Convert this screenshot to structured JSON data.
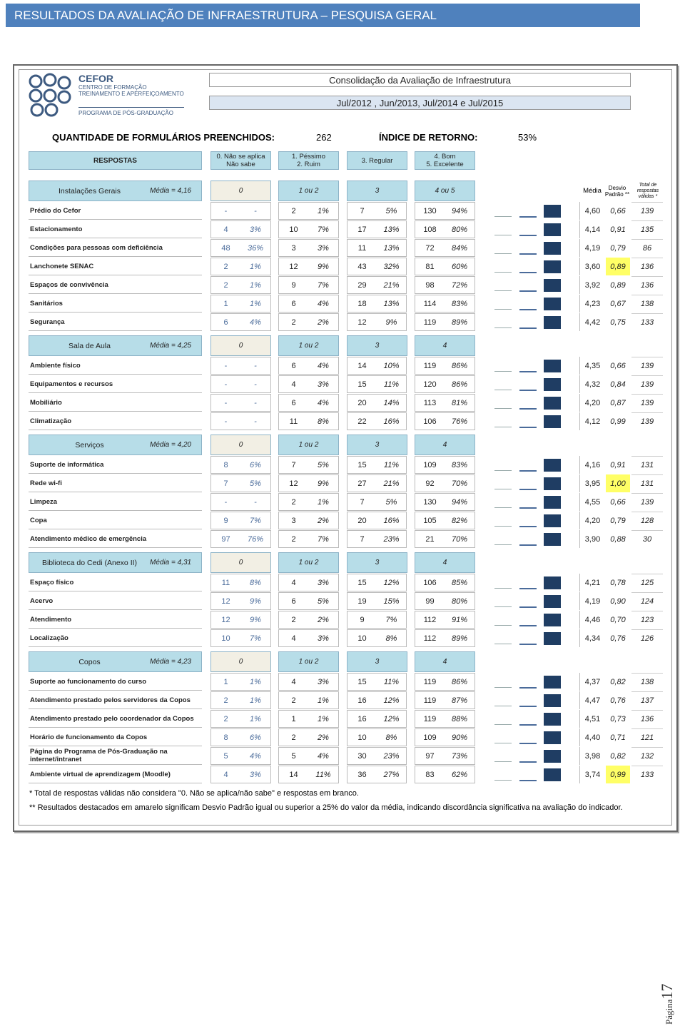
{
  "title": "RESULTADOS DA AVALIAÇÃO DE INFRAESTRUTURA – PESQUISA GERAL",
  "logo": {
    "name": "CEFOR",
    "line1": "CENTRO DE FORMAÇÃO",
    "line2": "TREINAMENTO E APERFEIÇOAMENTO",
    "program": "PROGRAMA DE PÓS-GRADUAÇÃO"
  },
  "header": {
    "title": "Consolidação da Avaliação de Infraestrutura",
    "period": "Jul/2012 , Jun/2013, Jul/2014 e Jul/2015"
  },
  "summary": {
    "forms_label": "QUANTIDADE DE FORMULÁRIOS PREENCHIDOS:",
    "forms_value": "262",
    "return_label": "ÍNDICE DE RETORNO:",
    "return_value": "53%"
  },
  "legend": {
    "title": "RESPOSTAS",
    "items": [
      [
        "0. Não se aplica",
        "Não sabe"
      ],
      [
        "1. Péssimo",
        "2. Ruim"
      ],
      [
        "3. Regular"
      ],
      [
        "4. Bom",
        "5. Excelente"
      ]
    ]
  },
  "stat_heads": [
    "Média",
    "Desvio Padrão **",
    "Total de respostas válidas *"
  ],
  "sections": [
    {
      "name": "Instalações Gerais",
      "media": "Média = 4,16",
      "heads": [
        "0",
        "1 ou 2",
        "3",
        "4 ou 5"
      ],
      "rows": [
        {
          "label": "Prédio do Cefor",
          "cells": [
            "-",
            "-",
            "2",
            "1%",
            "7",
            "5%",
            "130",
            "94%"
          ],
          "media": "4,60",
          "dp": "0,66",
          "total": "139"
        },
        {
          "label": "Estacionamento",
          "cells": [
            "4",
            "3%",
            "10",
            "7%",
            "17",
            "13%",
            "108",
            "80%"
          ],
          "media": "4,14",
          "dp": "0,91",
          "total": "135"
        },
        {
          "label": "Condições para pessoas com deficiência",
          "cells": [
            "48",
            "36%",
            "3",
            "3%",
            "11",
            "13%",
            "72",
            "84%"
          ],
          "media": "4,19",
          "dp": "0,79",
          "total": "86"
        },
        {
          "label": "Lanchonete SENAC",
          "cells": [
            "2",
            "1%",
            "12",
            "9%",
            "43",
            "32%",
            "81",
            "60%"
          ],
          "media": "3,60",
          "dp": "0,89",
          "total": "136",
          "highlight": true
        },
        {
          "label": "Espaços de convivência",
          "cells": [
            "2",
            "1%",
            "9",
            "7%",
            "29",
            "21%",
            "98",
            "72%"
          ],
          "media": "3,92",
          "dp": "0,89",
          "total": "136"
        },
        {
          "label": "Sanitários",
          "cells": [
            "1",
            "1%",
            "6",
            "4%",
            "18",
            "13%",
            "114",
            "83%"
          ],
          "media": "4,23",
          "dp": "0,67",
          "total": "138"
        },
        {
          "label": "Segurança",
          "cells": [
            "6",
            "4%",
            "2",
            "2%",
            "12",
            "9%",
            "119",
            "89%"
          ],
          "media": "4,42",
          "dp": "0,75",
          "total": "133"
        }
      ]
    },
    {
      "name": "Sala de Aula",
      "media": "Média = 4,25",
      "heads": [
        "0",
        "1 ou 2",
        "3",
        "4"
      ],
      "rows": [
        {
          "label": "Ambiente físico",
          "cells": [
            "-",
            "-",
            "6",
            "4%",
            "14",
            "10%",
            "119",
            "86%"
          ],
          "media": "4,35",
          "dp": "0,66",
          "total": "139"
        },
        {
          "label": "Equipamentos e recursos",
          "cells": [
            "-",
            "-",
            "4",
            "3%",
            "15",
            "11%",
            "120",
            "86%"
          ],
          "media": "4,32",
          "dp": "0,84",
          "total": "139"
        },
        {
          "label": "Mobiliário",
          "cells": [
            "-",
            "-",
            "6",
            "4%",
            "20",
            "14%",
            "113",
            "81%"
          ],
          "media": "4,20",
          "dp": "0,87",
          "total": "139"
        },
        {
          "label": "Climatização",
          "cells": [
            "-",
            "-",
            "11",
            "8%",
            "22",
            "16%",
            "106",
            "76%"
          ],
          "media": "4,12",
          "dp": "0,99",
          "total": "139"
        }
      ]
    },
    {
      "name": "Serviços",
      "media": "Média = 4,20",
      "heads": [
        "0",
        "1 ou 2",
        "3",
        "4"
      ],
      "rows": [
        {
          "label": "Suporte de informática",
          "cells": [
            "8",
            "6%",
            "7",
            "5%",
            "15",
            "11%",
            "109",
            "83%"
          ],
          "media": "4,16",
          "dp": "0,91",
          "total": "131"
        },
        {
          "label": "Rede wi-fi",
          "cells": [
            "7",
            "5%",
            "12",
            "9%",
            "27",
            "21%",
            "92",
            "70%"
          ],
          "media": "3,95",
          "dp": "1,00",
          "total": "131",
          "highlight": true
        },
        {
          "label": "Limpeza",
          "cells": [
            "-",
            "-",
            "2",
            "1%",
            "7",
            "5%",
            "130",
            "94%"
          ],
          "media": "4,55",
          "dp": "0,66",
          "total": "139"
        },
        {
          "label": "Copa",
          "cells": [
            "9",
            "7%",
            "3",
            "2%",
            "20",
            "16%",
            "105",
            "82%"
          ],
          "media": "4,20",
          "dp": "0,79",
          "total": "128"
        },
        {
          "label": "Atendimento médico de emergência",
          "cells": [
            "97",
            "76%",
            "2",
            "7%",
            "7",
            "23%",
            "21",
            "70%"
          ],
          "media": "3,90",
          "dp": "0,88",
          "total": "30"
        }
      ]
    },
    {
      "name": "Biblioteca do Cedi (Anexo II)",
      "media": "Média = 4,31",
      "heads": [
        "0",
        "1 ou 2",
        "3",
        "4"
      ],
      "rows": [
        {
          "label": "Espaço físico",
          "cells": [
            "11",
            "8%",
            "4",
            "3%",
            "15",
            "12%",
            "106",
            "85%"
          ],
          "media": "4,21",
          "dp": "0,78",
          "total": "125"
        },
        {
          "label": "Acervo",
          "cells": [
            "12",
            "9%",
            "6",
            "5%",
            "19",
            "15%",
            "99",
            "80%"
          ],
          "media": "4,19",
          "dp": "0,90",
          "total": "124"
        },
        {
          "label": "Atendimento",
          "cells": [
            "12",
            "9%",
            "2",
            "2%",
            "9",
            "7%",
            "112",
            "91%"
          ],
          "media": "4,46",
          "dp": "0,70",
          "total": "123"
        },
        {
          "label": "Localização",
          "cells": [
            "10",
            "7%",
            "4",
            "3%",
            "10",
            "8%",
            "112",
            "89%"
          ],
          "media": "4,34",
          "dp": "0,76",
          "total": "126"
        }
      ]
    },
    {
      "name": "Copos",
      "media": "Média = 4,23",
      "heads": [
        "0",
        "1 ou 2",
        "3",
        "4"
      ],
      "rows": [
        {
          "label": "Suporte ao funcionamento do curso",
          "cells": [
            "1",
            "1%",
            "4",
            "3%",
            "15",
            "11%",
            "119",
            "86%"
          ],
          "media": "4,37",
          "dp": "0,82",
          "total": "138"
        },
        {
          "label": "Atendimento prestado pelos servidores da Copos",
          "cells": [
            "2",
            "1%",
            "2",
            "1%",
            "16",
            "12%",
            "119",
            "87%"
          ],
          "media": "4,47",
          "dp": "0,76",
          "total": "137"
        },
        {
          "label": "Atendimento prestado pelo coordenador da Copos",
          "cells": [
            "2",
            "1%",
            "1",
            "1%",
            "16",
            "12%",
            "119",
            "88%"
          ],
          "media": "4,51",
          "dp": "0,73",
          "total": "136"
        },
        {
          "label": "Horário de funcionamento da Copos",
          "cells": [
            "8",
            "6%",
            "2",
            "2%",
            "10",
            "8%",
            "109",
            "90%"
          ],
          "media": "4,40",
          "dp": "0,71",
          "total": "121"
        },
        {
          "label": "Página do Programa de Pós-Graduação na internet/intranet",
          "cells": [
            "5",
            "4%",
            "5",
            "4%",
            "30",
            "23%",
            "97",
            "73%"
          ],
          "media": "3,98",
          "dp": "0,82",
          "total": "132"
        },
        {
          "label": "Ambiente virtual de aprendizagem (Moodle)",
          "cells": [
            "4",
            "3%",
            "14",
            "11%",
            "36",
            "27%",
            "83",
            "62%"
          ],
          "media": "3,74",
          "dp": "0,99",
          "total": "133",
          "highlight": true
        }
      ]
    }
  ],
  "footnotes": [
    "* Total de respostas válidas não considera \"0. Não se aplica/não sabe\" e respostas em branco.",
    "** Resultados destacados em amarelo significam Desvio Padrão igual ou superior a 25% do valor da média, indicando discordância significativa na avaliação do indicador."
  ],
  "page": {
    "label": "Página",
    "number": "17"
  }
}
